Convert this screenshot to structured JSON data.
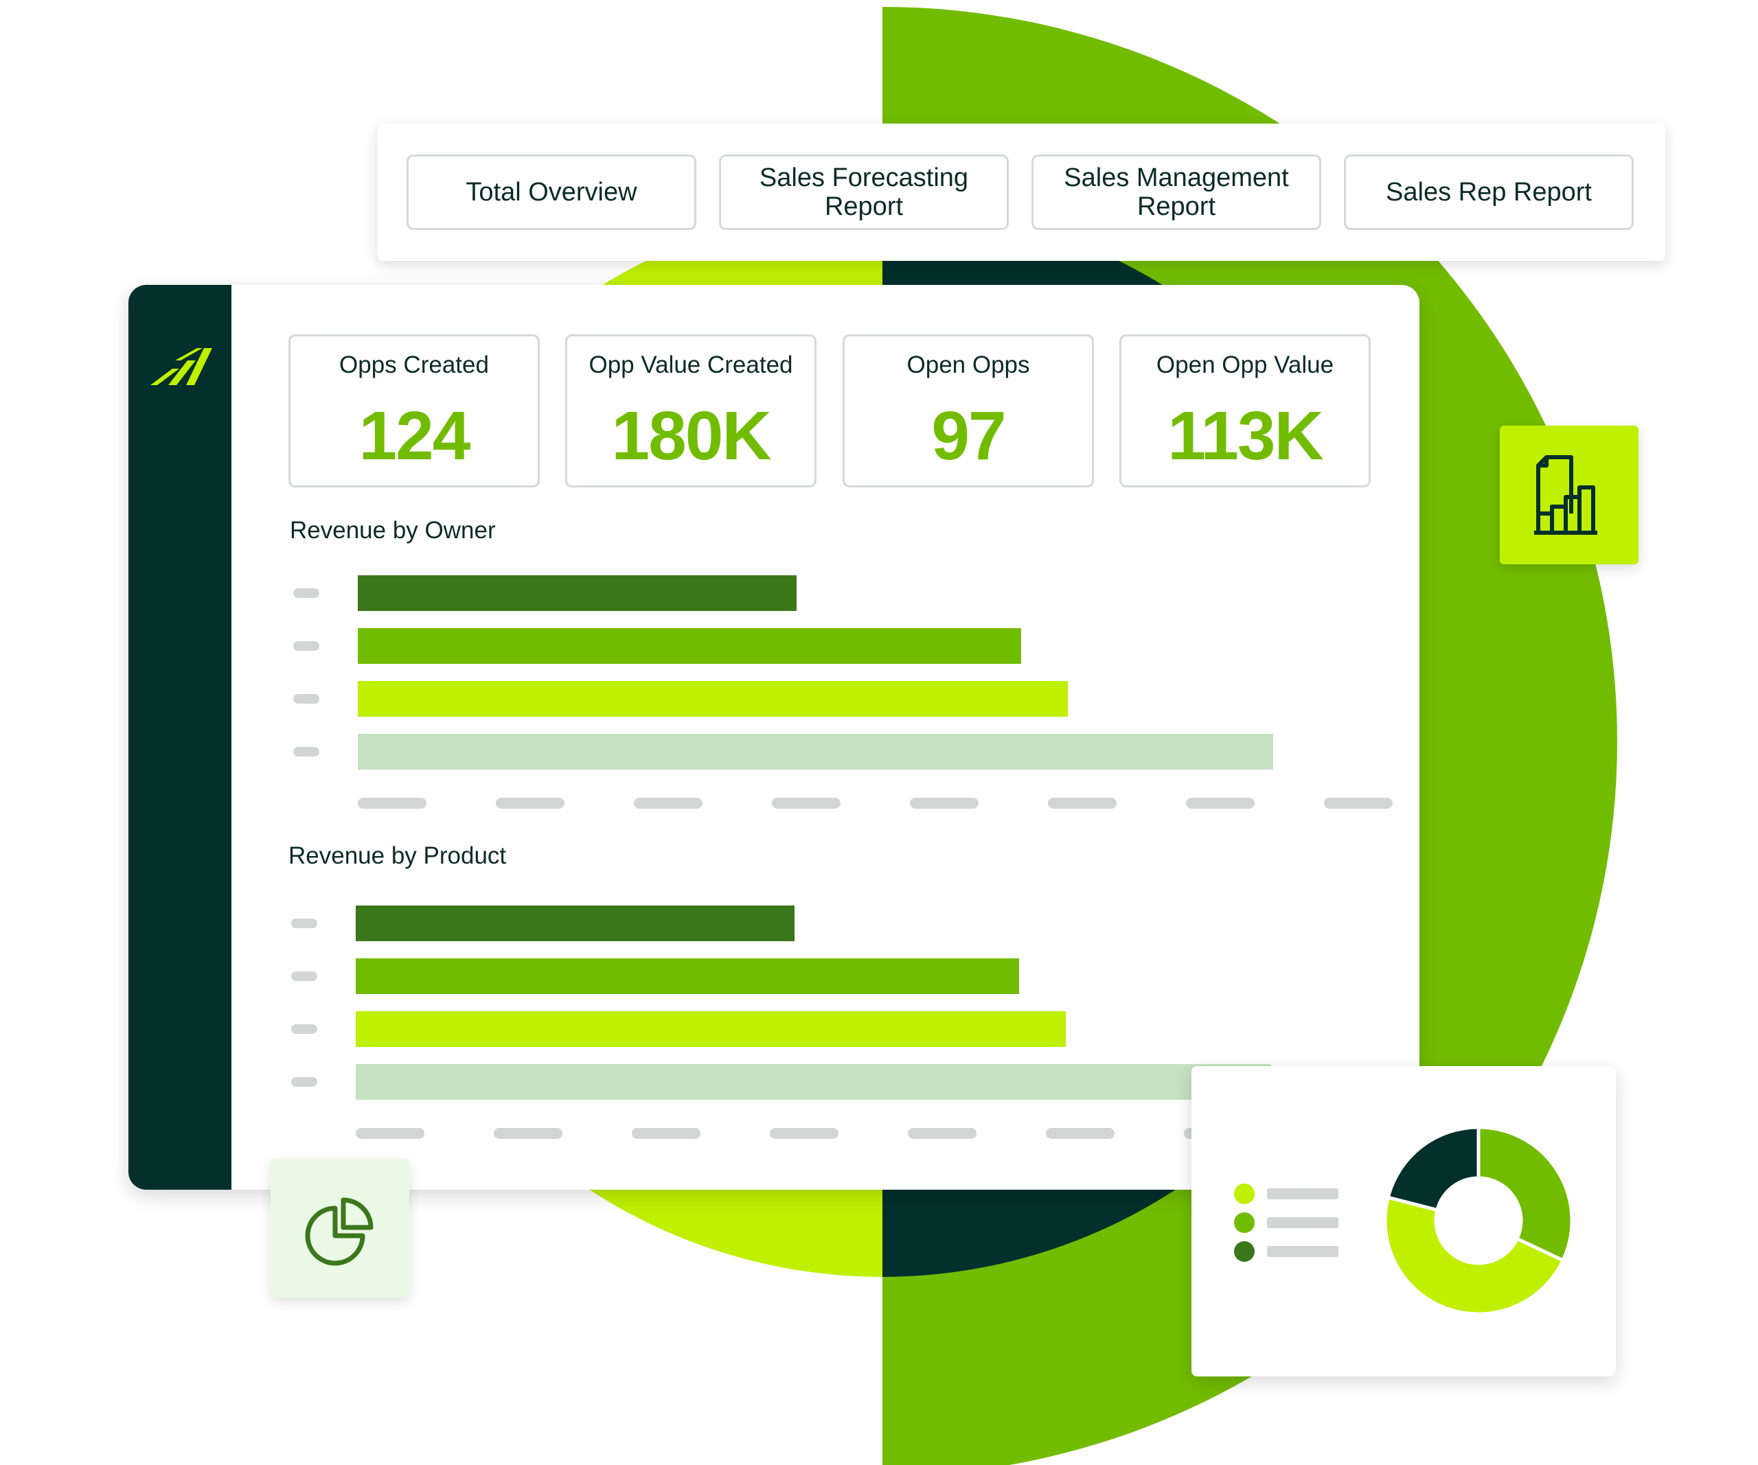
{
  "colors": {
    "dark": "#032f2c",
    "green": "#72bc00",
    "darkgreen": "#3b771b",
    "lime": "#bff000",
    "palegreen": "#c6e2c2",
    "placeholder": "#d3d5d4"
  },
  "tabs": [
    {
      "label": "Total Overview"
    },
    {
      "label": "Sales Forecasting Report"
    },
    {
      "label": "Sales Management Report"
    },
    {
      "label": "Sales Rep Report"
    }
  ],
  "kpis": [
    {
      "label": "Opps Created",
      "value": "124"
    },
    {
      "label": "Opp Value Created",
      "value": "180K"
    },
    {
      "label": "Open Opps",
      "value": "97"
    },
    {
      "label": "Open Opp Value",
      "value": "113K"
    }
  ],
  "icons": {
    "brand": "brand-logo-icon",
    "report": "report-chart-icon",
    "pie": "pie-chart-icon"
  },
  "chart_data": [
    {
      "type": "bar",
      "orientation": "horizontal",
      "title": "Revenue by Owner",
      "values": [
        0.47,
        0.71,
        0.76,
        0.98
      ],
      "bar_colors": [
        "#3b771b",
        "#72bc00",
        "#bff000",
        "#c6e2c2"
      ],
      "axis_ticks": 8
    },
    {
      "type": "bar",
      "orientation": "horizontal",
      "title": "Revenue by Product",
      "values": [
        0.47,
        0.71,
        0.76,
        0.98
      ],
      "bar_colors": [
        "#3b771b",
        "#72bc00",
        "#bff000",
        "#c6e2c2"
      ],
      "axis_ticks": 8
    },
    {
      "type": "pie",
      "variant": "donut",
      "values": [
        0.32,
        0.47,
        0.21
      ],
      "colors": [
        "#72bc00",
        "#bff000",
        "#032f2c"
      ],
      "legend_placement": "left"
    }
  ]
}
